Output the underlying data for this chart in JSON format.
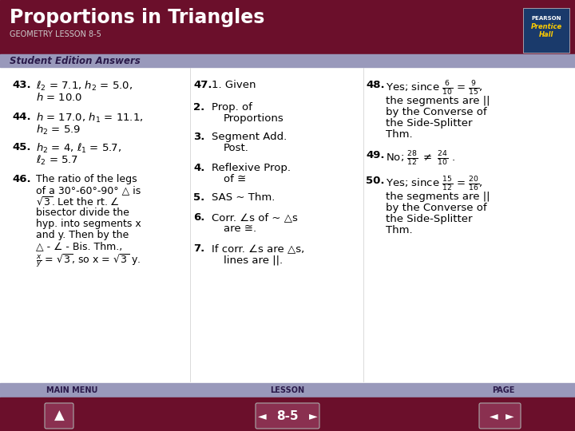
{
  "title": "Proportions in Triangles",
  "subtitle": "GEOMETRY LESSON 8-5",
  "section_label": "Student Edition Answers",
  "header_bg": "#6b0f2b",
  "header_text_color": "#ffffff",
  "subtitle_color": "#cccccc",
  "section_bg": "#9999bb",
  "section_text_color": "#2a1a4a",
  "body_bg": "#ffffff",
  "footer_bg": "#6b0f2b",
  "footer_nav_bg": "#8a2040",
  "body_text_color": "#000000",
  "pearson_box_color": "#ffffff",
  "pearson_text": "PEARSON\nPrentice\nHall",
  "nav_label_color": "#9999bb",
  "page_label": "8-5"
}
